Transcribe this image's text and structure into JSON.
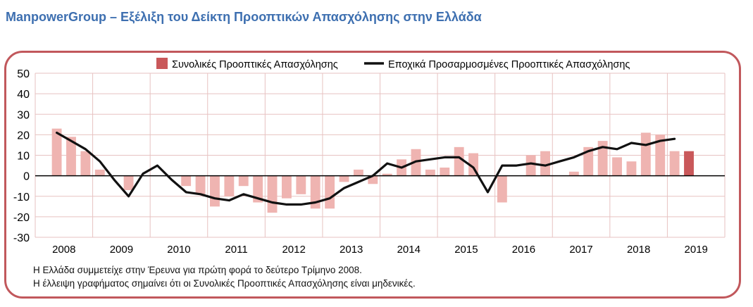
{
  "title": "ManpowerGroup – Εξέλιξη του Δείκτη Προοπτικών Απασχόλησης στην Ελλάδα",
  "notes": [
    "Η Ελλάδα συμμετείχε στην Έρευνα για πρώτη φορά το δεύτερο Τρίμηνο 2008.",
    "Η έλλειψη γραφήματος σημαίνει ότι οι Συνολικές Προοπτικές Απασχόλησης είναι μηδενικές."
  ],
  "colors": {
    "title": "#3d6fb0",
    "frame": "#c1585c",
    "bar": "#efb4b1",
    "bar_latest": "#c9585a",
    "line": "#111111",
    "grid": "#e7c2c1"
  },
  "chart_data": {
    "type": "bar",
    "ylim": [
      -30,
      50
    ],
    "yticks": [
      50,
      40,
      30,
      20,
      10,
      0,
      -10,
      -20,
      -30
    ],
    "year_labels": [
      "2008",
      "2009",
      "2010",
      "2011",
      "2012",
      "2013",
      "2014",
      "2015",
      "2016",
      "2017",
      "2018",
      "2019"
    ],
    "quarters_per_year": 4,
    "first_quarter_index": 1,
    "legend": [
      {
        "label": "Συνολικές Προοπτικές Απασχόλησης",
        "kind": "bar"
      },
      {
        "label": "Εποχικά Προσαρμοσμένες Προοπτικές Απασχόλησης",
        "kind": "line"
      }
    ],
    "series": [
      {
        "name": "Συνολικές Προοπτικές Απασχόλησης",
        "kind": "bar",
        "values": [
          23,
          19,
          12,
          3,
          0,
          -7,
          0,
          0,
          0,
          -5,
          -9,
          -15,
          -10,
          -5,
          -13,
          -18,
          -11,
          -9,
          -16,
          -16,
          -3,
          3,
          -4,
          1,
          8,
          13,
          3,
          4,
          14,
          11,
          0,
          -13,
          0,
          10,
          12,
          0,
          2,
          14,
          17,
          9,
          7,
          21,
          20,
          12,
          12
        ]
      },
      {
        "name": "Εποχικά Προσαρμοσμένες Προοπτικές Απασχόλησης",
        "kind": "line",
        "values": [
          21,
          17,
          13,
          7,
          -2,
          -10,
          1,
          5,
          -2,
          -8,
          -9,
          -11,
          -12,
          -9,
          -11,
          -13,
          -14,
          -14,
          -13,
          -11,
          -6,
          -3,
          0,
          6,
          4,
          7,
          8,
          9,
          9,
          4,
          -8,
          5,
          5,
          6,
          5,
          7,
          9,
          12,
          14,
          13,
          16,
          15,
          17,
          18,
          null
        ]
      }
    ]
  }
}
